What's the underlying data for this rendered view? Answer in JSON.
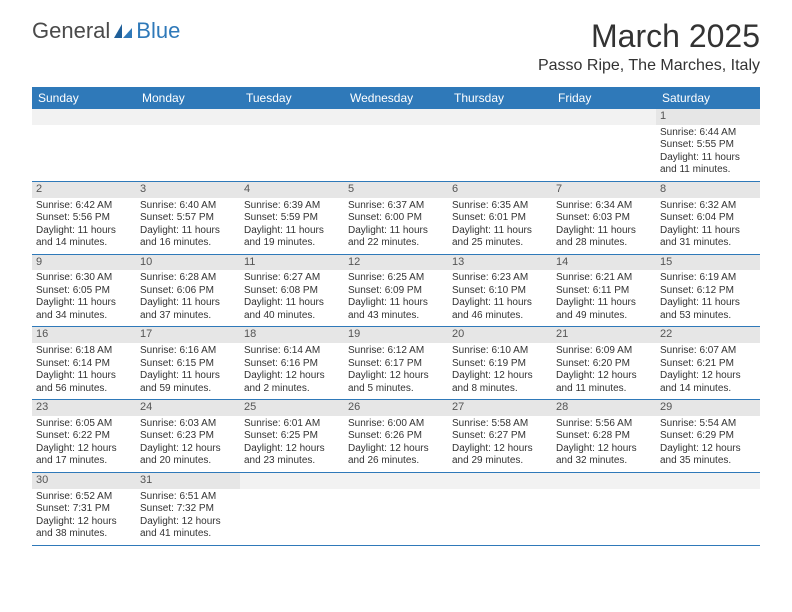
{
  "brand": {
    "part1": "General",
    "part2": "Blue"
  },
  "title": "March 2025",
  "location": "Passo Ripe, The Marches, Italy",
  "colors": {
    "header_bg": "#2f79b9",
    "header_text": "#ffffff",
    "daynum_bg": "#e6e6e6",
    "border": "#2f79b9",
    "body_text": "#333333"
  },
  "day_headers": [
    "Sunday",
    "Monday",
    "Tuesday",
    "Wednesday",
    "Thursday",
    "Friday",
    "Saturday"
  ],
  "weeks": [
    [
      {
        "blank": true
      },
      {
        "blank": true
      },
      {
        "blank": true
      },
      {
        "blank": true
      },
      {
        "blank": true
      },
      {
        "blank": true
      },
      {
        "day": "1",
        "sunrise": "Sunrise: 6:44 AM",
        "sunset": "Sunset: 5:55 PM",
        "dl1": "Daylight: 11 hours",
        "dl2": "and 11 minutes."
      }
    ],
    [
      {
        "day": "2",
        "sunrise": "Sunrise: 6:42 AM",
        "sunset": "Sunset: 5:56 PM",
        "dl1": "Daylight: 11 hours",
        "dl2": "and 14 minutes."
      },
      {
        "day": "3",
        "sunrise": "Sunrise: 6:40 AM",
        "sunset": "Sunset: 5:57 PM",
        "dl1": "Daylight: 11 hours",
        "dl2": "and 16 minutes."
      },
      {
        "day": "4",
        "sunrise": "Sunrise: 6:39 AM",
        "sunset": "Sunset: 5:59 PM",
        "dl1": "Daylight: 11 hours",
        "dl2": "and 19 minutes."
      },
      {
        "day": "5",
        "sunrise": "Sunrise: 6:37 AM",
        "sunset": "Sunset: 6:00 PM",
        "dl1": "Daylight: 11 hours",
        "dl2": "and 22 minutes."
      },
      {
        "day": "6",
        "sunrise": "Sunrise: 6:35 AM",
        "sunset": "Sunset: 6:01 PM",
        "dl1": "Daylight: 11 hours",
        "dl2": "and 25 minutes."
      },
      {
        "day": "7",
        "sunrise": "Sunrise: 6:34 AM",
        "sunset": "Sunset: 6:03 PM",
        "dl1": "Daylight: 11 hours",
        "dl2": "and 28 minutes."
      },
      {
        "day": "8",
        "sunrise": "Sunrise: 6:32 AM",
        "sunset": "Sunset: 6:04 PM",
        "dl1": "Daylight: 11 hours",
        "dl2": "and 31 minutes."
      }
    ],
    [
      {
        "day": "9",
        "sunrise": "Sunrise: 6:30 AM",
        "sunset": "Sunset: 6:05 PM",
        "dl1": "Daylight: 11 hours",
        "dl2": "and 34 minutes."
      },
      {
        "day": "10",
        "sunrise": "Sunrise: 6:28 AM",
        "sunset": "Sunset: 6:06 PM",
        "dl1": "Daylight: 11 hours",
        "dl2": "and 37 minutes."
      },
      {
        "day": "11",
        "sunrise": "Sunrise: 6:27 AM",
        "sunset": "Sunset: 6:08 PM",
        "dl1": "Daylight: 11 hours",
        "dl2": "and 40 minutes."
      },
      {
        "day": "12",
        "sunrise": "Sunrise: 6:25 AM",
        "sunset": "Sunset: 6:09 PM",
        "dl1": "Daylight: 11 hours",
        "dl2": "and 43 minutes."
      },
      {
        "day": "13",
        "sunrise": "Sunrise: 6:23 AM",
        "sunset": "Sunset: 6:10 PM",
        "dl1": "Daylight: 11 hours",
        "dl2": "and 46 minutes."
      },
      {
        "day": "14",
        "sunrise": "Sunrise: 6:21 AM",
        "sunset": "Sunset: 6:11 PM",
        "dl1": "Daylight: 11 hours",
        "dl2": "and 49 minutes."
      },
      {
        "day": "15",
        "sunrise": "Sunrise: 6:19 AM",
        "sunset": "Sunset: 6:12 PM",
        "dl1": "Daylight: 11 hours",
        "dl2": "and 53 minutes."
      }
    ],
    [
      {
        "day": "16",
        "sunrise": "Sunrise: 6:18 AM",
        "sunset": "Sunset: 6:14 PM",
        "dl1": "Daylight: 11 hours",
        "dl2": "and 56 minutes."
      },
      {
        "day": "17",
        "sunrise": "Sunrise: 6:16 AM",
        "sunset": "Sunset: 6:15 PM",
        "dl1": "Daylight: 11 hours",
        "dl2": "and 59 minutes."
      },
      {
        "day": "18",
        "sunrise": "Sunrise: 6:14 AM",
        "sunset": "Sunset: 6:16 PM",
        "dl1": "Daylight: 12 hours",
        "dl2": "and 2 minutes."
      },
      {
        "day": "19",
        "sunrise": "Sunrise: 6:12 AM",
        "sunset": "Sunset: 6:17 PM",
        "dl1": "Daylight: 12 hours",
        "dl2": "and 5 minutes."
      },
      {
        "day": "20",
        "sunrise": "Sunrise: 6:10 AM",
        "sunset": "Sunset: 6:19 PM",
        "dl1": "Daylight: 12 hours",
        "dl2": "and 8 minutes."
      },
      {
        "day": "21",
        "sunrise": "Sunrise: 6:09 AM",
        "sunset": "Sunset: 6:20 PM",
        "dl1": "Daylight: 12 hours",
        "dl2": "and 11 minutes."
      },
      {
        "day": "22",
        "sunrise": "Sunrise: 6:07 AM",
        "sunset": "Sunset: 6:21 PM",
        "dl1": "Daylight: 12 hours",
        "dl2": "and 14 minutes."
      }
    ],
    [
      {
        "day": "23",
        "sunrise": "Sunrise: 6:05 AM",
        "sunset": "Sunset: 6:22 PM",
        "dl1": "Daylight: 12 hours",
        "dl2": "and 17 minutes."
      },
      {
        "day": "24",
        "sunrise": "Sunrise: 6:03 AM",
        "sunset": "Sunset: 6:23 PM",
        "dl1": "Daylight: 12 hours",
        "dl2": "and 20 minutes."
      },
      {
        "day": "25",
        "sunrise": "Sunrise: 6:01 AM",
        "sunset": "Sunset: 6:25 PM",
        "dl1": "Daylight: 12 hours",
        "dl2": "and 23 minutes."
      },
      {
        "day": "26",
        "sunrise": "Sunrise: 6:00 AM",
        "sunset": "Sunset: 6:26 PM",
        "dl1": "Daylight: 12 hours",
        "dl2": "and 26 minutes."
      },
      {
        "day": "27",
        "sunrise": "Sunrise: 5:58 AM",
        "sunset": "Sunset: 6:27 PM",
        "dl1": "Daylight: 12 hours",
        "dl2": "and 29 minutes."
      },
      {
        "day": "28",
        "sunrise": "Sunrise: 5:56 AM",
        "sunset": "Sunset: 6:28 PM",
        "dl1": "Daylight: 12 hours",
        "dl2": "and 32 minutes."
      },
      {
        "day": "29",
        "sunrise": "Sunrise: 5:54 AM",
        "sunset": "Sunset: 6:29 PM",
        "dl1": "Daylight: 12 hours",
        "dl2": "and 35 minutes."
      }
    ],
    [
      {
        "day": "30",
        "sunrise": "Sunrise: 6:52 AM",
        "sunset": "Sunset: 7:31 PM",
        "dl1": "Daylight: 12 hours",
        "dl2": "and 38 minutes."
      },
      {
        "day": "31",
        "sunrise": "Sunrise: 6:51 AM",
        "sunset": "Sunset: 7:32 PM",
        "dl1": "Daylight: 12 hours",
        "dl2": "and 41 minutes."
      },
      {
        "blank": true
      },
      {
        "blank": true
      },
      {
        "blank": true
      },
      {
        "blank": true
      },
      {
        "blank": true
      }
    ]
  ]
}
